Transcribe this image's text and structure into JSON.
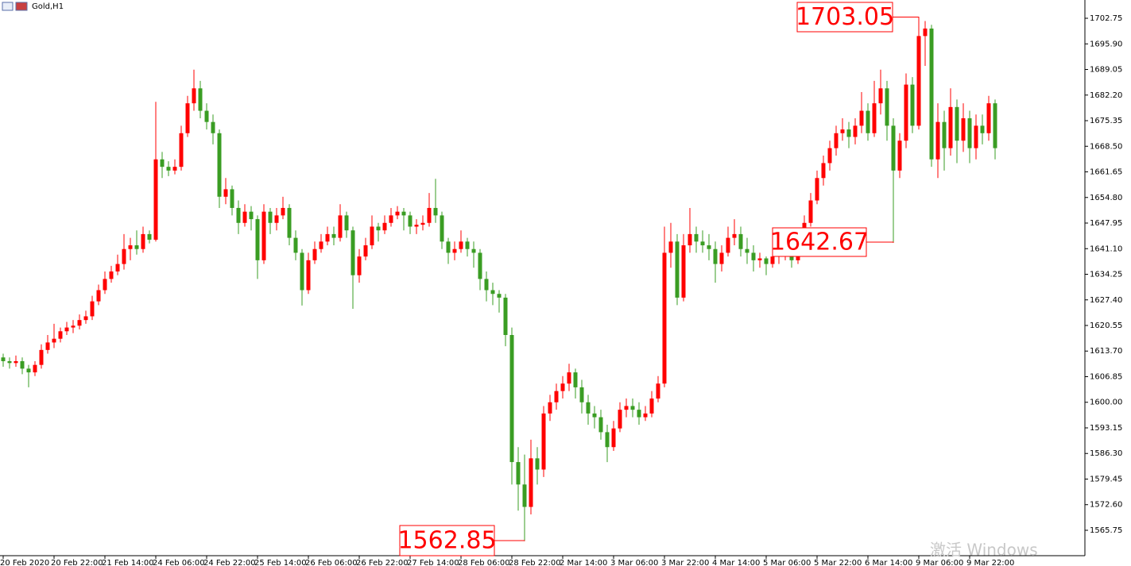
{
  "chart_data": {
    "type": "candlestick",
    "title": "Gold,H1",
    "watermark": "激活 Windows",
    "up_color": "#ff0000",
    "down_color": "#3a9d23",
    "ylim": [
      1558.95,
      1707.64
    ],
    "yticks": [
      1702.75,
      {
        "value": 1695.9,
        "label": "1695.90"
      },
      1689.05,
      {
        "value": 1682.2,
        "label": "1682.20"
      },
      1675.35,
      {
        "value": 1668.5,
        "label": "1668.50"
      },
      1661.65,
      {
        "value": 1654.8,
        "label": "1654.80"
      },
      1647.95,
      {
        "value": 1641.1,
        "label": "1641.10"
      },
      1634.25,
      {
        "value": 1627.4,
        "label": "1627.40"
      },
      1620.55,
      {
        "value": 1613.7,
        "label": "1613.70"
      },
      1606.85,
      {
        "value": 1600,
        "label": "1600.00"
      },
      1593.15,
      {
        "value": 1586.3,
        "label": "1586.30"
      },
      1579.45,
      {
        "value": 1572.6,
        "label": "1572.60"
      },
      1565.75
    ],
    "categories": [
      "20 Feb 2020",
      null,
      null,
      null,
      null,
      null,
      null,
      null,
      "20 Feb 22:00",
      null,
      null,
      null,
      null,
      null,
      null,
      null,
      "21 Feb 14:00",
      null,
      null,
      null,
      null,
      null,
      null,
      null,
      "24 Feb 06:00",
      null,
      null,
      null,
      null,
      null,
      null,
      null,
      "24 Feb 22:00",
      null,
      null,
      null,
      null,
      null,
      null,
      null,
      "25 Feb 14:00",
      null,
      null,
      null,
      null,
      null,
      null,
      null,
      "26 Feb 06:00",
      null,
      null,
      null,
      null,
      null,
      null,
      null,
      "26 Feb 22:00",
      null,
      null,
      null,
      null,
      null,
      null,
      null,
      "27 Feb 14:00",
      null,
      null,
      null,
      null,
      null,
      null,
      null,
      "28 Feb 06:00",
      null,
      null,
      null,
      null,
      null,
      null,
      null,
      "28 Feb 22:00",
      null,
      null,
      null,
      null,
      null,
      null,
      null,
      "2 Mar 14:00",
      null,
      null,
      null,
      null,
      null,
      null,
      null,
      "3 Mar 06:00",
      null,
      null,
      null,
      null,
      null,
      null,
      null,
      "3 Mar 22:00",
      null,
      null,
      null,
      null,
      null,
      null,
      null,
      "4 Mar 14:00",
      null,
      null,
      null,
      null,
      null,
      null,
      null,
      "5 Mar 06:00",
      null,
      null,
      null,
      null,
      null,
      null,
      null,
      "5 Mar 22:00",
      null,
      null,
      null,
      null,
      null,
      null,
      null,
      "6 Mar 14:00",
      null,
      null,
      null,
      null,
      null,
      null,
      null,
      "9 Mar 06:00",
      null,
      null,
      null,
      null,
      null,
      null,
      null,
      "9 Mar 22:00",
      null,
      null,
      null,
      null
    ],
    "ohlc": [
      [
        1612,
        1613,
        1609.5,
        1611
      ],
      [
        1611,
        1612,
        1609,
        1610.5
      ],
      [
        1610.5,
        1612.5,
        1609.5,
        1611
      ],
      [
        1611,
        1612,
        1607.5,
        1609
      ],
      [
        1609,
        1610,
        1604,
        1608
      ],
      [
        1608,
        1611,
        1607,
        1610
      ],
      [
        1610,
        1615.5,
        1609,
        1614
      ],
      [
        1614,
        1618,
        1613,
        1616
      ],
      [
        1616,
        1621,
        1614.5,
        1617
      ],
      [
        1617,
        1620,
        1616,
        1619
      ],
      [
        1619,
        1621.5,
        1618,
        1620
      ],
      [
        1620,
        1622,
        1618.5,
        1620.5
      ],
      [
        1620.5,
        1623.5,
        1619.5,
        1622
      ],
      [
        1622,
        1624.5,
        1621,
        1623
      ],
      [
        1623,
        1628.5,
        1622,
        1627
      ],
      [
        1627,
        1631.5,
        1626,
        1630
      ],
      [
        1630,
        1635,
        1629,
        1633
      ],
      [
        1633,
        1636.5,
        1632,
        1635
      ],
      [
        1635,
        1639.5,
        1634,
        1637
      ],
      [
        1637,
        1645,
        1635.5,
        1641
      ],
      [
        1641,
        1644,
        1638,
        1642
      ],
      [
        1642,
        1646,
        1639.5,
        1641
      ],
      [
        1641,
        1647,
        1640,
        1645
      ],
      [
        1645,
        1646,
        1642.5,
        1643.5
      ],
      [
        1643.5,
        1680.4,
        1643,
        1665
      ],
      [
        1665,
        1667,
        1660,
        1663
      ],
      [
        1663,
        1664.5,
        1660.5,
        1662
      ],
      [
        1662,
        1665,
        1661,
        1663
      ],
      [
        1663,
        1674,
        1662,
        1672
      ],
      [
        1672,
        1682,
        1671,
        1680
      ],
      [
        1680,
        1689,
        1678,
        1684
      ],
      [
        1684,
        1686,
        1676,
        1678
      ],
      [
        1678,
        1680,
        1673,
        1675
      ],
      [
        1675,
        1677,
        1669,
        1672
      ],
      [
        1672,
        1673,
        1652,
        1655
      ],
      [
        1655,
        1660,
        1653,
        1657
      ],
      [
        1657,
        1658,
        1650,
        1652
      ],
      [
        1652,
        1654,
        1645,
        1648
      ],
      [
        1648,
        1653,
        1647,
        1651
      ],
      [
        1651,
        1652.5,
        1646,
        1649
      ],
      [
        1649,
        1650,
        1633,
        1638
      ],
      [
        1638,
        1653,
        1637,
        1651
      ],
      [
        1651,
        1652,
        1645,
        1648
      ],
      [
        1648,
        1652,
        1646,
        1650
      ],
      [
        1650,
        1655,
        1649,
        1652
      ],
      [
        1652,
        1653,
        1642,
        1644
      ],
      [
        1644,
        1646,
        1638,
        1640
      ],
      [
        1640,
        1641,
        1625.9,
        1630
      ],
      [
        1630,
        1640,
        1629,
        1638
      ],
      [
        1638,
        1643,
        1637,
        1641
      ],
      [
        1641,
        1645,
        1640,
        1643
      ],
      [
        1643,
        1647,
        1642,
        1645
      ],
      [
        1645,
        1647,
        1642,
        1644
      ],
      [
        1644,
        1653,
        1643,
        1650
      ],
      [
        1650,
        1651,
        1644,
        1646
      ],
      [
        1646,
        1647,
        1625,
        1634
      ],
      [
        1634,
        1641,
        1632,
        1639
      ],
      [
        1639,
        1644,
        1638,
        1642
      ],
      [
        1642,
        1650,
        1641,
        1647
      ],
      [
        1647,
        1648,
        1643,
        1646
      ],
      [
        1646,
        1650,
        1645,
        1648
      ],
      [
        1648,
        1652,
        1647,
        1650
      ],
      [
        1650,
        1652.5,
        1649,
        1651
      ],
      [
        1651,
        1652,
        1646,
        1650
      ],
      [
        1650,
        1651,
        1645,
        1647
      ],
      [
        1647,
        1649,
        1645,
        1647.5
      ],
      [
        1647.5,
        1650,
        1646,
        1648
      ],
      [
        1648,
        1656,
        1647,
        1652
      ],
      [
        1652,
        1659.8,
        1648,
        1650
      ],
      [
        1650,
        1651,
        1641,
        1643
      ],
      [
        1643,
        1644,
        1637,
        1640
      ],
      [
        1640,
        1643,
        1638,
        1641
      ],
      [
        1641,
        1646,
        1640,
        1643
      ],
      [
        1643,
        1644,
        1639,
        1641
      ],
      [
        1641,
        1643,
        1636,
        1640
      ],
      [
        1640,
        1641,
        1630,
        1633
      ],
      [
        1633,
        1635,
        1627,
        1630
      ],
      [
        1630,
        1632,
        1626,
        1629
      ],
      [
        1629,
        1630,
        1624,
        1628
      ],
      [
        1628,
        1629,
        1615,
        1618
      ],
      [
        1618,
        1620,
        1578,
        1584
      ],
      [
        1584,
        1588,
        1571,
        1578
      ],
      [
        1578,
        1586,
        1562.85,
        1572
      ],
      [
        1572,
        1590,
        1570,
        1585
      ],
      [
        1585,
        1588,
        1578,
        1582
      ],
      [
        1582,
        1599,
        1580,
        1597
      ],
      [
        1597,
        1602,
        1595,
        1600
      ],
      [
        1600,
        1605,
        1598,
        1603
      ],
      [
        1603,
        1607,
        1601,
        1605
      ],
      [
        1605,
        1610.3,
        1603,
        1608
      ],
      [
        1608,
        1609,
        1601,
        1604
      ],
      [
        1604,
        1606,
        1597,
        1600
      ],
      [
        1600,
        1602,
        1594,
        1597
      ],
      [
        1597,
        1599,
        1593,
        1596
      ],
      [
        1596,
        1598,
        1590,
        1592
      ],
      [
        1592,
        1594,
        1584,
        1588
      ],
      [
        1588,
        1595,
        1587,
        1593
      ],
      [
        1593,
        1600,
        1592,
        1598
      ],
      [
        1598,
        1601,
        1596,
        1599
      ],
      [
        1599,
        1601,
        1596,
        1598
      ],
      [
        1598,
        1600,
        1594,
        1596
      ],
      [
        1596,
        1599,
        1595,
        1597
      ],
      [
        1597,
        1603,
        1596,
        1601
      ],
      [
        1601,
        1607,
        1600,
        1605
      ],
      [
        1605,
        1647,
        1604,
        1640
      ],
      [
        1640,
        1648,
        1636,
        1643
      ],
      [
        1643,
        1645,
        1626,
        1628
      ],
      [
        1628,
        1645,
        1627,
        1642
      ],
      [
        1642,
        1652,
        1640,
        1645
      ],
      [
        1645,
        1647,
        1640,
        1643
      ],
      [
        1643,
        1646,
        1640,
        1642
      ],
      [
        1642,
        1645,
        1638,
        1641
      ],
      [
        1641,
        1643,
        1632,
        1637
      ],
      [
        1637,
        1642,
        1635,
        1640
      ],
      [
        1640,
        1647,
        1639,
        1644
      ],
      [
        1644,
        1649,
        1642,
        1645
      ],
      [
        1645,
        1647,
        1639,
        1641
      ],
      [
        1641,
        1644,
        1637,
        1640
      ],
      [
        1640,
        1642,
        1635,
        1638
      ],
      [
        1638,
        1640,
        1636,
        1638.5
      ],
      [
        1638.5,
        1639,
        1634,
        1637
      ],
      [
        1637,
        1641,
        1636,
        1639
      ],
      [
        1639,
        1642,
        1637,
        1639.5
      ],
      [
        1639.5,
        1643,
        1638,
        1640
      ],
      [
        1640,
        1641,
        1636,
        1638
      ],
      [
        1638,
        1646,
        1637,
        1644
      ],
      [
        1644,
        1650,
        1643,
        1648
      ],
      [
        1648,
        1656,
        1647,
        1654
      ],
      [
        1654,
        1662,
        1653,
        1660
      ],
      [
        1660,
        1666,
        1658,
        1664
      ],
      [
        1664,
        1670,
        1662,
        1668
      ],
      [
        1668,
        1674,
        1666,
        1672
      ],
      [
        1672,
        1676,
        1670,
        1673
      ],
      [
        1673,
        1675,
        1668,
        1671
      ],
      [
        1671,
        1676,
        1669,
        1674
      ],
      [
        1674,
        1683,
        1672,
        1678
      ],
      [
        1678,
        1680,
        1670,
        1672
      ],
      [
        1672,
        1686,
        1671,
        1680
      ],
      [
        1680,
        1689,
        1677,
        1684
      ],
      [
        1684,
        1686,
        1670,
        1674
      ],
      [
        1674,
        1676,
        1642.67,
        1662
      ],
      [
        1662,
        1672,
        1660,
        1670
      ],
      [
        1670,
        1688,
        1668,
        1685
      ],
      [
        1685,
        1687,
        1672,
        1674
      ],
      [
        1674,
        1703.05,
        1673,
        1698
      ],
      [
        1698,
        1702,
        1690,
        1700
      ],
      [
        1700,
        1701,
        1663,
        1665
      ],
      [
        1665,
        1680,
        1660,
        1675
      ],
      [
        1675,
        1678,
        1662,
        1668
      ],
      [
        1668,
        1684,
        1666,
        1679
      ],
      [
        1679,
        1681,
        1664,
        1670
      ],
      [
        1670,
        1680,
        1667,
        1676
      ],
      [
        1676,
        1678,
        1664,
        1668
      ],
      [
        1668,
        1677,
        1665,
        1674
      ],
      [
        1674,
        1677,
        1669,
        1672
      ],
      [
        1672,
        1682,
        1670,
        1680
      ],
      [
        1680,
        1681,
        1665,
        1668
      ]
    ]
  }
}
